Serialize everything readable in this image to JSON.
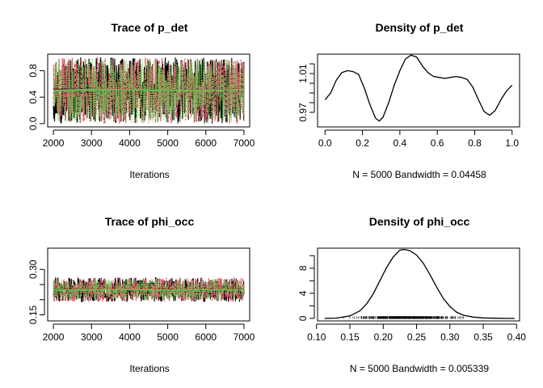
{
  "chart_data": [
    {
      "type": "line",
      "title": "Trace of p_det",
      "xlabel": "Iterations",
      "ylabel": "",
      "xlim": [
        1850,
        7150
      ],
      "ylim": [
        -0.05,
        1.05
      ],
      "xticks": [
        "2000",
        "3000",
        "4000",
        "5000",
        "6000",
        "7000"
      ],
      "xtick_values": [
        2000,
        3000,
        4000,
        5000,
        6000,
        7000
      ],
      "yticks": [
        "0.0",
        "0.4",
        "0.8"
      ],
      "ytick_values": [
        0.0,
        0.4,
        0.8
      ],
      "axis_style": "box",
      "series": [
        {
          "color": "#000000",
          "mean": 0.5,
          "spread": 0.5,
          "dash": "none",
          "trend": [
            0.52,
            0.52,
            0.51,
            0.5,
            0.51,
            0.52
          ]
        },
        {
          "color": "#DF536B",
          "mean": 0.5,
          "spread": 0.5,
          "dash": "4,2",
          "trend": [
            0.51,
            0.52,
            0.52,
            0.5,
            0.51,
            0.52
          ]
        },
        {
          "color": "#61D04F",
          "mean": 0.5,
          "spread": 0.5,
          "dash": "1,2",
          "trend": [
            0.5,
            0.51,
            0.51,
            0.5,
            0.5,
            0.51
          ]
        }
      ]
    },
    {
      "type": "line",
      "title": "Density of p_det",
      "xlabel": "N = 5000   Bandwidth = 0.04458",
      "ylabel": "",
      "xlim": [
        -0.04,
        1.04
      ],
      "ylim": [
        0.955,
        1.03
      ],
      "xticks": [
        "0.0",
        "0.2",
        "0.4",
        "0.6",
        "0.8",
        "1.0"
      ],
      "xtick_values": [
        0.0,
        0.2,
        0.4,
        0.6,
        0.8,
        1.0
      ],
      "yticks": [
        "0.97",
        "1.01"
      ],
      "ytick_values": [
        0.97,
        1.01
      ],
      "minor_ytick_values": [
        0.98,
        0.99,
        1.0,
        1.02
      ],
      "axis_style": "box",
      "series": [
        {
          "color": "#000000",
          "x": [
            0.0,
            0.03,
            0.06,
            0.09,
            0.12,
            0.15,
            0.18,
            0.21,
            0.24,
            0.27,
            0.29,
            0.31,
            0.34,
            0.37,
            0.4,
            0.43,
            0.46,
            0.49,
            0.52,
            0.55,
            0.58,
            0.61,
            0.64,
            0.67,
            0.7,
            0.73,
            0.76,
            0.79,
            0.82,
            0.85,
            0.88,
            0.91,
            0.94,
            0.97,
            1.0
          ],
          "y": [
            0.983,
            0.99,
            1.003,
            1.011,
            1.013,
            1.012,
            1.009,
            0.995,
            0.978,
            0.964,
            0.961,
            0.965,
            0.98,
            0.998,
            1.013,
            1.025,
            1.029,
            1.027,
            1.018,
            1.011,
            1.007,
            1.006,
            1.005,
            1.006,
            1.007,
            1.006,
            1.004,
            0.996,
            0.983,
            0.971,
            0.967,
            0.972,
            0.983,
            0.992,
            0.998
          ]
        }
      ]
    },
    {
      "type": "line",
      "title": "Trace of phi_occ",
      "xlabel": "Iterations",
      "ylabel": "",
      "xlim": [
        1850,
        7150
      ],
      "ylim": [
        0.13,
        0.37
      ],
      "xticks": [
        "2000",
        "3000",
        "4000",
        "5000",
        "6000",
        "7000"
      ],
      "xtick_values": [
        2000,
        3000,
        4000,
        5000,
        6000,
        7000
      ],
      "yticks": [
        "0.15",
        "0.30"
      ],
      "ytick_values": [
        0.15,
        0.3
      ],
      "minor_ytick_values": [
        0.2,
        0.25
      ],
      "axis_style": "box",
      "series": [
        {
          "color": "#000000",
          "mean": 0.233,
          "spread": 0.04,
          "dash": "none",
          "trend": [
            0.234,
            0.234,
            0.233,
            0.233,
            0.233,
            0.234
          ]
        },
        {
          "color": "#DF536B",
          "mean": 0.233,
          "spread": 0.04,
          "dash": "4,2",
          "trend": [
            0.233,
            0.234,
            0.234,
            0.233,
            0.233,
            0.233
          ]
        },
        {
          "color": "#61D04F",
          "mean": 0.233,
          "spread": 0.035,
          "dash": "1,2",
          "trend": [
            0.233,
            0.233,
            0.233,
            0.232,
            0.233,
            0.233
          ]
        }
      ]
    },
    {
      "type": "line",
      "title": "Density of phi_occ",
      "xlabel": "N = 5000   Bandwidth = 0.005339",
      "ylabel": "",
      "xlim": [
        0.1015,
        0.4045
      ],
      "ylim": [
        -0.4,
        11.2
      ],
      "xticks": [
        "0.10",
        "0.15",
        "0.20",
        "0.25",
        "0.30",
        "0.35",
        "0.40"
      ],
      "xtick_values": [
        0.1,
        0.15,
        0.2,
        0.25,
        0.3,
        0.35,
        0.4
      ],
      "yticks": [
        "0",
        "4",
        "8"
      ],
      "ytick_values": [
        0,
        4,
        8
      ],
      "minor_ytick_values": [
        2,
        6,
        10
      ],
      "axis_style": "box",
      "rug": true,
      "series": [
        {
          "color": "#000000",
          "x": [
            0.112,
            0.13,
            0.15,
            0.165,
            0.175,
            0.185,
            0.195,
            0.205,
            0.215,
            0.225,
            0.232,
            0.24,
            0.25,
            0.26,
            0.27,
            0.28,
            0.29,
            0.3,
            0.31,
            0.32,
            0.335,
            0.35,
            0.37,
            0.39,
            0.397
          ],
          "y": [
            0.0,
            0.05,
            0.4,
            1.2,
            2.3,
            3.9,
            6.0,
            8.1,
            9.8,
            10.9,
            11.0,
            10.8,
            10.1,
            8.8,
            7.0,
            5.0,
            3.2,
            1.9,
            1.0,
            0.5,
            0.2,
            0.08,
            0.02,
            0.0,
            0.0
          ]
        }
      ]
    }
  ]
}
